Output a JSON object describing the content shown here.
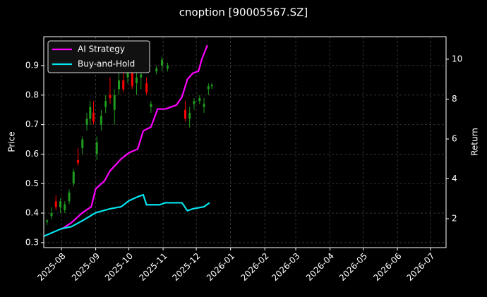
{
  "chart_data": {
    "type": "candlestick",
    "title": "cnoption [90005567.SZ]",
    "y_label": "Price",
    "y2_label": "Return",
    "x": [
      18,
      22,
      26,
      30,
      34,
      38,
      42,
      46,
      50,
      54,
      57,
      60,
      63,
      67,
      71,
      75,
      79,
      83,
      87,
      91,
      95,
      99,
      103,
      108,
      112,
      117,
      122,
      127,
      143,
      147,
      151,
      156,
      160,
      164,
      167
    ],
    "open": [
      0.37,
      0.39,
      0.44,
      0.42,
      0.41,
      0.44,
      0.5,
      0.58,
      0.62,
      0.7,
      0.72,
      0.74,
      0.6,
      0.7,
      0.76,
      0.8,
      0.75,
      0.82,
      0.85,
      0.86,
      0.88,
      0.84,
      0.86,
      0.84,
      0.76,
      0.88,
      0.9,
      0.89,
      0.75,
      0.72,
      0.77,
      0.78,
      0.76,
      0.82,
      0.83
    ],
    "high": [
      0.38,
      0.42,
      0.46,
      0.45,
      0.44,
      0.48,
      0.55,
      0.62,
      0.66,
      0.74,
      0.78,
      0.78,
      0.66,
      0.75,
      0.8,
      0.86,
      0.82,
      0.9,
      0.88,
      0.9,
      0.92,
      0.88,
      0.89,
      0.86,
      0.78,
      0.9,
      0.93,
      0.91,
      0.78,
      0.76,
      0.79,
      0.8,
      0.79,
      0.84,
      0.84
    ],
    "low": [
      0.36,
      0.38,
      0.41,
      0.4,
      0.4,
      0.43,
      0.49,
      0.56,
      0.6,
      0.68,
      0.7,
      0.7,
      0.58,
      0.68,
      0.74,
      0.77,
      0.7,
      0.8,
      0.81,
      0.84,
      0.82,
      0.8,
      0.82,
      0.8,
      0.74,
      0.87,
      0.88,
      0.88,
      0.71,
      0.69,
      0.75,
      0.77,
      0.74,
      0.8,
      0.82
    ],
    "close": [
      0.375,
      0.4,
      0.42,
      0.44,
      0.43,
      0.47,
      0.54,
      0.57,
      0.65,
      0.72,
      0.76,
      0.71,
      0.64,
      0.73,
      0.78,
      0.79,
      0.8,
      0.85,
      0.82,
      0.89,
      0.83,
      0.86,
      0.87,
      0.81,
      0.77,
      0.89,
      0.92,
      0.9,
      0.72,
      0.74,
      0.78,
      0.79,
      0.77,
      0.83,
      0.835
    ],
    "up_color": "#1f9c1f",
    "down_color": "#ff0000",
    "series": [
      {
        "name": "AI Strategy",
        "color": "#ff00ff",
        "axis": "y2",
        "x": [
          31,
          40,
          50,
          58,
          62,
          70,
          75,
          85,
          92,
          100,
          105,
          112,
          118,
          125,
          135,
          140,
          145,
          150,
          155,
          158,
          163
        ],
        "values": [
          1.47,
          1.8,
          2.3,
          2.6,
          3.5,
          3.9,
          4.4,
          5.0,
          5.3,
          5.5,
          6.4,
          6.6,
          7.5,
          7.5,
          7.7,
          8.1,
          9.0,
          9.3,
          9.4,
          10.0,
          10.7
        ]
      },
      {
        "name": "Buy-and-Hold",
        "color": "#00e5ee",
        "axis": "y2",
        "x": [
          15,
          31,
          40,
          50,
          62,
          75,
          85,
          92,
          100,
          105,
          108,
          120,
          125,
          140,
          145,
          150,
          160,
          165
        ],
        "values": [
          1.12,
          1.5,
          1.6,
          1.9,
          2.3,
          2.5,
          2.6,
          2.9,
          3.1,
          3.2,
          2.7,
          2.7,
          2.8,
          2.8,
          2.4,
          2.5,
          2.6,
          2.8
        ]
      }
    ],
    "xlim": [
      15,
      379
    ],
    "xticks": [
      {
        "value": 31,
        "label": "2025-08"
      },
      {
        "value": 62,
        "label": "2025-09"
      },
      {
        "value": 92,
        "label": "2025-10"
      },
      {
        "value": 123,
        "label": "2025-11"
      },
      {
        "value": 153,
        "label": "2025-12"
      },
      {
        "value": 184,
        "label": "2026-01"
      },
      {
        "value": 215,
        "label": "2026-02"
      },
      {
        "value": 243,
        "label": "2026-03"
      },
      {
        "value": 274,
        "label": "2026-04"
      },
      {
        "value": 304,
        "label": "2026-05"
      },
      {
        "value": 335,
        "label": "2026-06"
      },
      {
        "value": 365,
        "label": "2026-07"
      }
    ],
    "ylim": [
      0.283,
      0.998
    ],
    "yticks": [
      0.3,
      0.4,
      0.5,
      0.6,
      0.7,
      0.8,
      0.9
    ],
    "y2lim": [
      0.55,
      11.13
    ],
    "y2ticks": [
      2,
      4,
      6,
      8,
      10
    ],
    "grid": true,
    "legend": "upper left"
  }
}
